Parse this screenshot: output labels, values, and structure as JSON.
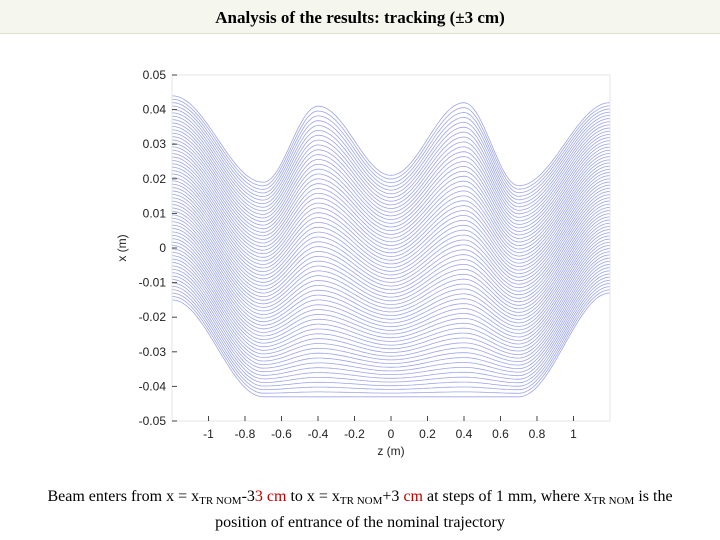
{
  "title": "Analysis of the results: tracking (±3 cm)",
  "caption": {
    "p1": "Beam enters from x = x",
    "sub1": "TR NOM",
    "p2": "-3",
    "red1": "3 cm",
    "p3": " to x = x",
    "sub2": "TR NOM",
    "p4": "+3 ",
    "red2": "cm",
    "p5": " at steps of 1 mm, where x",
    "sub3": "TR NOM",
    "p6": " is the",
    "line2": "position of entrance of the nominal trajectory"
  },
  "chart_data": {
    "type": "line",
    "title": "",
    "xlabel": "z (m)",
    "ylabel": "x (m)",
    "xlim": [
      -1.2,
      1.2
    ],
    "ylim": [
      -0.05,
      0.05
    ],
    "xticks": [
      "-1",
      "-0.8",
      "-0.6",
      "-0.4",
      "-0.2",
      "0",
      "0.2",
      "0.4",
      "0.6",
      "0.8",
      "1"
    ],
    "yticks": [
      "0.05",
      "0.04",
      "0.03",
      "0.02",
      "0.01",
      "0",
      "-0.01",
      "-0.02",
      "-0.03",
      "-0.04",
      "-0.05"
    ],
    "grid": false,
    "line_color": "#9da5e8",
    "num_series": 61,
    "entrance_offsets_m": {
      "start": -0.03,
      "stop": 0.03,
      "step": 0.001
    },
    "envelope_extrema": [
      {
        "z": -1.2,
        "x_max": 0.044,
        "x_min": -0.015
      },
      {
        "z": -0.7,
        "x_max": 0.019,
        "x_min": -0.043
      },
      {
        "z": -0.4,
        "x_max": 0.041,
        "x_min": -0.043
      },
      {
        "z": 0.0,
        "x_max": 0.021,
        "x_min": -0.043
      },
      {
        "z": 0.4,
        "x_max": 0.042,
        "x_min": -0.043
      },
      {
        "z": 0.7,
        "x_max": 0.018,
        "x_min": -0.043
      },
      {
        "z": 1.2,
        "x_max": 0.042,
        "x_min": -0.013
      }
    ]
  }
}
